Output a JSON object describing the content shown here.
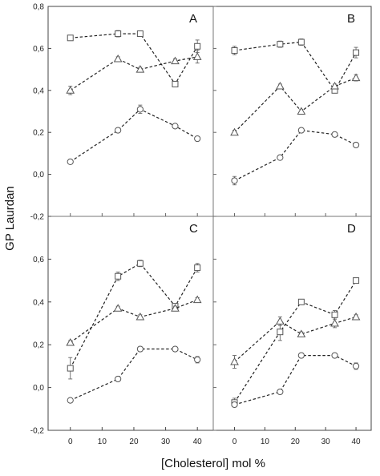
{
  "figure": {
    "ylabel": "GP Laurdan",
    "xlabel": "[Cholesterol] mol %"
  },
  "chart_data": [
    {
      "type": "line",
      "panel": "A",
      "x": [
        0,
        15,
        22,
        33,
        40
      ],
      "series": [
        {
          "marker": "square",
          "values": [
            0.65,
            0.67,
            0.67,
            0.43,
            0.61
          ],
          "errors": [
            0.01,
            0.015,
            0.01,
            0.01,
            0.03
          ]
        },
        {
          "marker": "triangle",
          "values": [
            0.4,
            0.55,
            0.5,
            0.54,
            0.56
          ],
          "errors": [
            0.02,
            0.01,
            0.01,
            0.01,
            0.03
          ]
        },
        {
          "marker": "circle",
          "values": [
            0.06,
            0.21,
            0.31,
            0.23,
            0.17
          ],
          "errors": [
            0.01,
            0.01,
            0.02,
            0.01,
            0.01
          ]
        }
      ],
      "xlim": [
        -7,
        45
      ],
      "ylim": [
        -0.2,
        0.8
      ],
      "grid": false
    },
    {
      "type": "line",
      "panel": "B",
      "x": [
        0,
        15,
        22,
        33,
        40
      ],
      "series": [
        {
          "marker": "square",
          "values": [
            0.59,
            0.62,
            0.63,
            0.4,
            0.58
          ],
          "errors": [
            0.02,
            0.015,
            0.015,
            0.01,
            0.025
          ]
        },
        {
          "marker": "triangle",
          "values": [
            0.2,
            0.42,
            0.3,
            0.42,
            0.46
          ],
          "errors": [
            0.01,
            0.01,
            0.01,
            0.01,
            0.015
          ]
        },
        {
          "marker": "circle",
          "values": [
            -0.03,
            0.08,
            0.21,
            0.19,
            0.14
          ],
          "errors": [
            0.02,
            0.01,
            0.01,
            0.01,
            0.01
          ]
        }
      ],
      "xlim": [
        -7,
        45
      ],
      "ylim": [
        -0.2,
        0.8
      ],
      "grid": false
    },
    {
      "type": "line",
      "panel": "C",
      "x": [
        0,
        15,
        22,
        33,
        40
      ],
      "series": [
        {
          "marker": "square",
          "values": [
            0.09,
            0.52,
            0.58,
            0.38,
            0.56
          ],
          "errors": [
            0.05,
            0.02,
            0.015,
            0.01,
            0.02
          ]
        },
        {
          "marker": "triangle",
          "values": [
            0.21,
            0.37,
            0.33,
            0.37,
            0.41
          ],
          "errors": [
            0.01,
            0.01,
            0.01,
            0.01,
            0.01
          ]
        },
        {
          "marker": "circle",
          "values": [
            -0.06,
            0.04,
            0.18,
            0.18,
            0.13
          ],
          "errors": [
            0.01,
            0.01,
            0.01,
            0.01,
            0.015
          ]
        }
      ],
      "xlim": [
        -7,
        45
      ],
      "ylim": [
        -0.2,
        0.8
      ],
      "grid": false
    },
    {
      "type": "line",
      "panel": "D",
      "x": [
        0,
        15,
        22,
        33,
        40
      ],
      "series": [
        {
          "marker": "square",
          "values": [
            -0.07,
            0.26,
            0.4,
            0.34,
            0.5
          ],
          "errors": [
            0.02,
            0.04,
            0.01,
            0.02,
            0.01
          ]
        },
        {
          "marker": "triangle",
          "values": [
            0.12,
            0.31,
            0.25,
            0.3,
            0.33
          ],
          "errors": [
            0.03,
            0.02,
            0.01,
            0.02,
            0.01
          ]
        },
        {
          "marker": "circle",
          "values": [
            -0.08,
            -0.02,
            0.15,
            0.15,
            0.1
          ],
          "errors": [
            0.01,
            0.01,
            0.01,
            0.01,
            0.015
          ]
        }
      ],
      "xlim": [
        -7,
        45
      ],
      "ylim": [
        -0.2,
        0.8
      ],
      "grid": false
    }
  ],
  "y_ticks": [
    "-0,2",
    "0,0",
    "0,2",
    "0,4",
    "0,6",
    "0,8"
  ],
  "y_tick_values": [
    -0.2,
    0.0,
    0.2,
    0.4,
    0.6,
    0.8
  ],
  "x_ticks": [
    "0",
    "10",
    "20",
    "30",
    "40"
  ],
  "x_tick_values": [
    0,
    10,
    20,
    30,
    40
  ]
}
